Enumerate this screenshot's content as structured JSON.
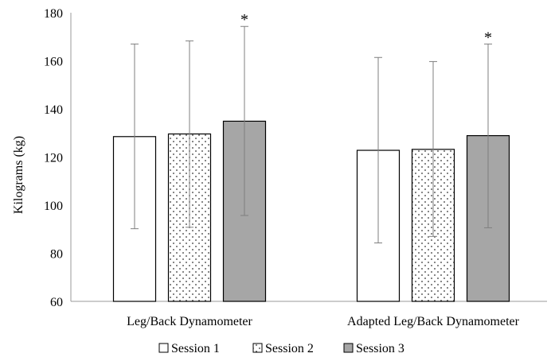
{
  "chart_data": {
    "type": "bar",
    "title": "",
    "xlabel": "",
    "ylabel": "Kilograms (kg)",
    "ylim": [
      60,
      180
    ],
    "yticks": [
      60,
      80,
      100,
      120,
      140,
      160,
      180
    ],
    "ytick_labels": [
      "60",
      "80",
      "100",
      "120",
      "140",
      "160",
      "180"
    ],
    "grid": false,
    "legend_position": "bottom",
    "categories": [
      "Leg/Back Dynamometer",
      "Adapted Leg/Back Dynamometer"
    ],
    "series": [
      {
        "name": "Session 1",
        "values": [
          128.5,
          122.8
        ],
        "error_low": [
          90.2,
          84.3
        ],
        "error_high": [
          167.0,
          161.4
        ],
        "fill": "white",
        "significance": [
          "",
          ""
        ]
      },
      {
        "name": "Session 2",
        "values": [
          129.6,
          123.2
        ],
        "error_low": [
          90.8,
          87.0
        ],
        "error_high": [
          168.3,
          159.7
        ],
        "fill": "dotted",
        "significance": [
          "",
          ""
        ]
      },
      {
        "name": "Session 3",
        "values": [
          134.9,
          128.9
        ],
        "error_low": [
          95.7,
          90.6
        ],
        "error_high": [
          174.3,
          167.0
        ],
        "fill": "gray",
        "significance": [
          "*",
          "*"
        ]
      }
    ]
  },
  "colors": {
    "session3_fill": "#a6a6a6",
    "bar_edge": "#000000",
    "error_bar": "#7f7f7f",
    "axis": "#999999",
    "dot_pattern": "#333333"
  }
}
